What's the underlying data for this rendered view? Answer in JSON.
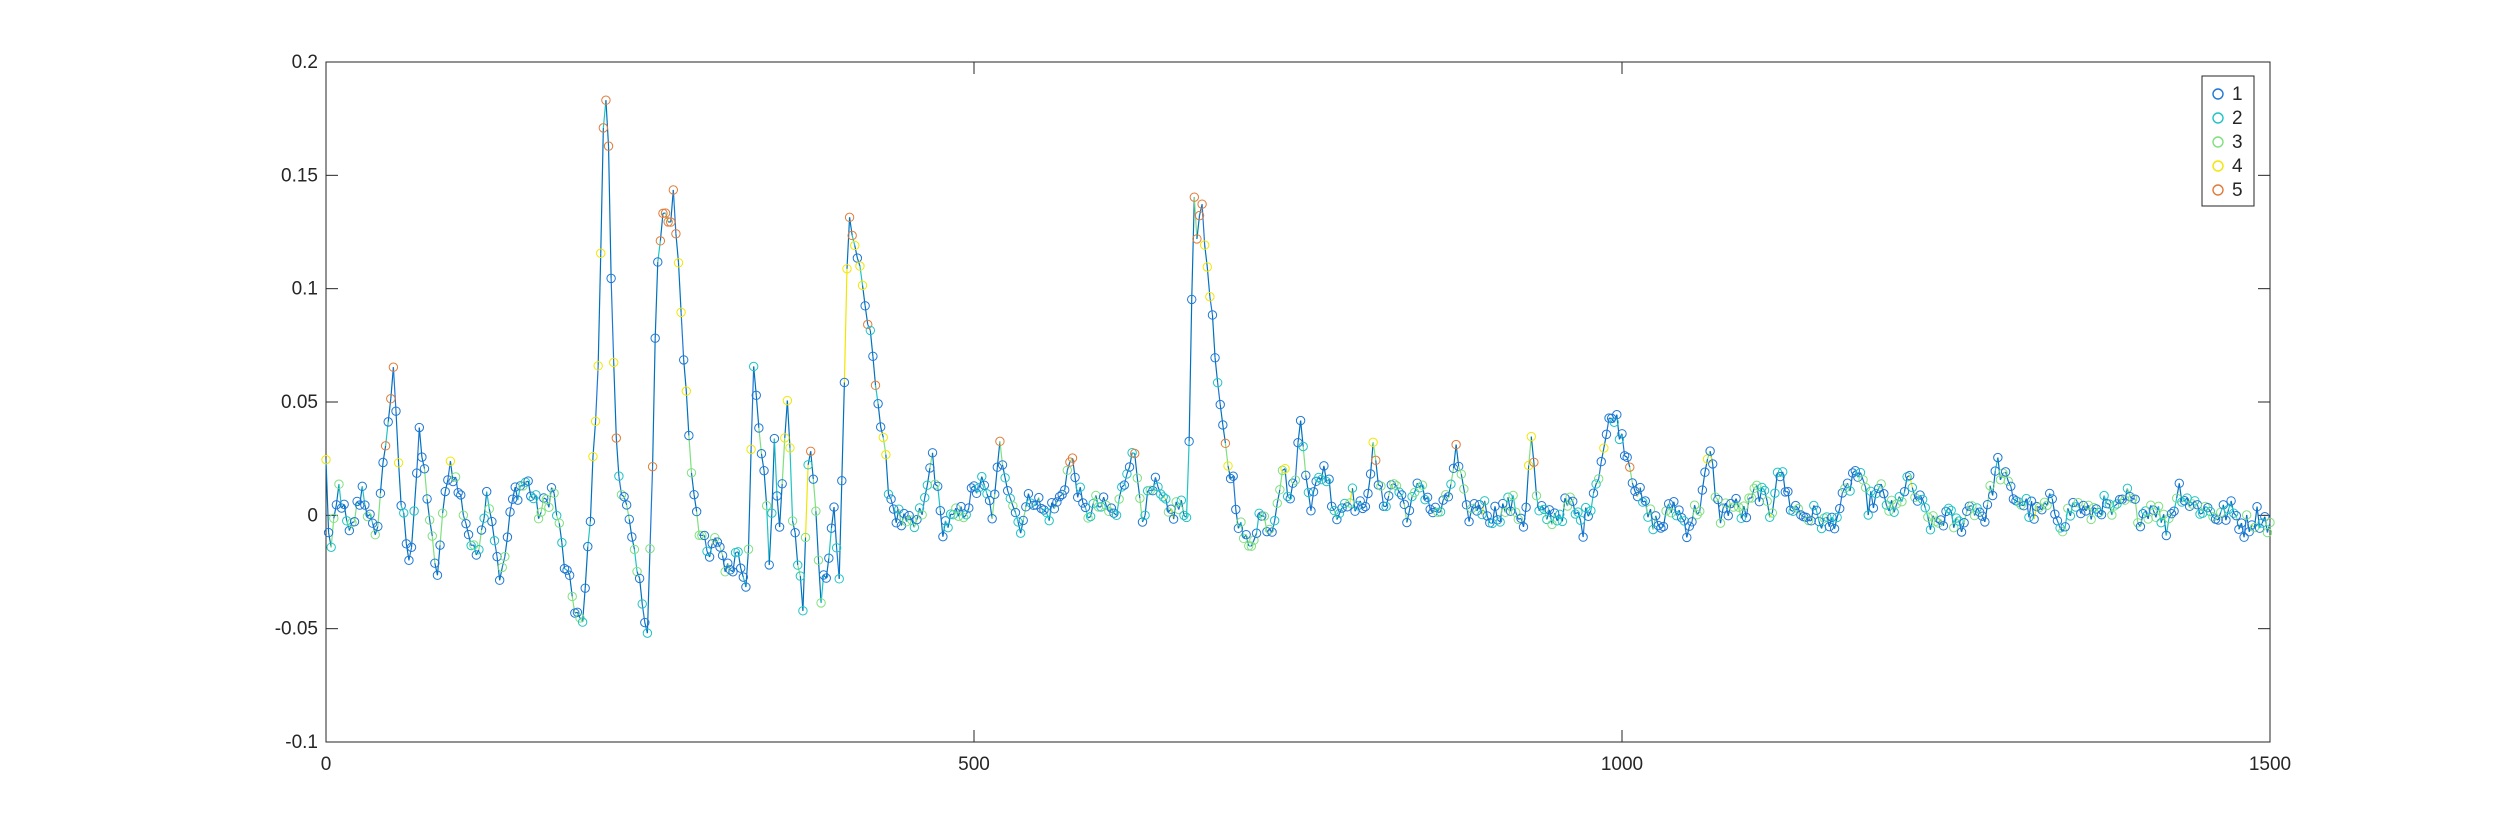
{
  "chart_data": {
    "type": "scatter",
    "title": "",
    "xlabel": "",
    "ylabel": "",
    "xlim": [
      0,
      1500
    ],
    "ylim": [
      -0.1,
      0.2
    ],
    "grid": false,
    "legend_position": "top-right",
    "x_ticks": [
      "0",
      "500",
      "1000",
      "1500"
    ],
    "y_ticks": [
      "-0.1",
      "-0.05",
      "0",
      "0.05",
      "0.1",
      "0.15",
      "0.2"
    ],
    "line_color": "#0072bd",
    "series": [
      {
        "name": "1",
        "color": "#1f77d4"
      },
      {
        "name": "2",
        "color": "#1fc4c4"
      },
      {
        "name": "3",
        "color": "#7fe07f"
      },
      {
        "name": "4",
        "color": "#f2e600"
      },
      {
        "name": "5",
        "color": "#e07b39"
      }
    ],
    "anchors": [
      [
        0,
        0.023
      ],
      [
        3,
        -0.02
      ],
      [
        10,
        0.012
      ],
      [
        18,
        -0.01
      ],
      [
        28,
        0.012
      ],
      [
        38,
        -0.012
      ],
      [
        48,
        0.043
      ],
      [
        52,
        0.062
      ],
      [
        58,
        0.005
      ],
      [
        65,
        -0.02
      ],
      [
        72,
        0.034
      ],
      [
        78,
        0.01
      ],
      [
        85,
        -0.03
      ],
      [
        95,
        0.025
      ],
      [
        105,
        0.005
      ],
      [
        115,
        -0.02
      ],
      [
        125,
        0.012
      ],
      [
        135,
        -0.03
      ],
      [
        145,
        0.01
      ],
      [
        155,
        0.015
      ],
      [
        165,
        0.0
      ],
      [
        175,
        0.012
      ],
      [
        185,
        -0.025
      ],
      [
        192,
        -0.04
      ],
      [
        198,
        -0.05
      ],
      [
        205,
        0.01
      ],
      [
        210,
        0.068
      ],
      [
        213,
        0.14
      ],
      [
        215,
        0.197
      ],
      [
        218,
        0.16
      ],
      [
        221,
        0.08
      ],
      [
        225,
        0.02
      ],
      [
        230,
        0.01
      ],
      [
        238,
        -0.02
      ],
      [
        245,
        -0.04
      ],
      [
        248,
        -0.05
      ],
      [
        252,
        0.02
      ],
      [
        255,
        0.105
      ],
      [
        260,
        0.132
      ],
      [
        265,
        0.127
      ],
      [
        268,
        0.143
      ],
      [
        272,
        0.11
      ],
      [
        276,
        0.07
      ],
      [
        282,
        0.02
      ],
      [
        288,
        -0.005
      ],
      [
        295,
        -0.02
      ],
      [
        302,
        -0.01
      ],
      [
        310,
        -0.025
      ],
      [
        318,
        -0.015
      ],
      [
        325,
        -0.03
      ],
      [
        330,
        0.064
      ],
      [
        333,
        0.045
      ],
      [
        338,
        0.02
      ],
      [
        342,
        -0.02
      ],
      [
        346,
        0.03
      ],
      [
        350,
        -0.01
      ],
      [
        353,
        0.03
      ],
      [
        356,
        0.05
      ],
      [
        360,
        0.0
      ],
      [
        364,
        -0.02
      ],
      [
        368,
        -0.04
      ],
      [
        373,
        0.035
      ],
      [
        378,
        0.0
      ],
      [
        382,
        -0.035
      ],
      [
        387,
        -0.02
      ],
      [
        392,
        0.004
      ],
      [
        396,
        -0.03
      ],
      [
        400,
        0.058
      ],
      [
        403,
        0.136
      ],
      [
        407,
        0.12
      ],
      [
        410,
        0.115
      ],
      [
        414,
        0.098
      ],
      [
        418,
        0.085
      ],
      [
        422,
        0.072
      ],
      [
        426,
        0.05
      ],
      [
        430,
        0.03
      ],
      [
        435,
        0.01
      ],
      [
        440,
        0.0
      ],
      [
        448,
        -0.005
      ],
      [
        455,
        -0.005
      ],
      [
        462,
        0.005
      ],
      [
        468,
        0.027
      ],
      [
        475,
        -0.005
      ],
      [
        490,
        0.0
      ],
      [
        505,
        0.015
      ],
      [
        515,
        0.0
      ],
      [
        520,
        0.03
      ],
      [
        528,
        0.01
      ],
      [
        535,
        -0.005
      ],
      [
        545,
        0.01
      ],
      [
        555,
        0.0
      ],
      [
        565,
        0.005
      ],
      [
        575,
        0.025
      ],
      [
        585,
        0.0
      ],
      [
        595,
        0.005
      ],
      [
        610,
        0.0
      ],
      [
        622,
        0.031
      ],
      [
        630,
        0.002
      ],
      [
        640,
        0.012
      ],
      [
        650,
        0.0
      ],
      [
        660,
        0.005
      ],
      [
        664,
        -0.005
      ],
      [
        667,
        0.052
      ],
      [
        669,
        0.146
      ],
      [
        672,
        0.125
      ],
      [
        675,
        0.14
      ],
      [
        678,
        0.12
      ],
      [
        682,
        0.1
      ],
      [
        686,
        0.07
      ],
      [
        690,
        0.045
      ],
      [
        695,
        0.025
      ],
      [
        700,
        0.015
      ],
      [
        705,
        -0.005
      ],
      [
        712,
        -0.015
      ],
      [
        720,
        0.0
      ],
      [
        730,
        -0.005
      ],
      [
        738,
        0.022
      ],
      [
        745,
        0.005
      ],
      [
        752,
        0.04
      ],
      [
        760,
        0.005
      ],
      [
        770,
        0.022
      ],
      [
        780,
        0.0
      ],
      [
        790,
        0.01
      ],
      [
        800,
        0.0
      ],
      [
        808,
        0.028
      ],
      [
        815,
        0.005
      ],
      [
        825,
        0.015
      ],
      [
        835,
        0.0
      ],
      [
        845,
        0.015
      ],
      [
        855,
        0.0
      ],
      [
        865,
        0.005
      ],
      [
        872,
        0.028
      ],
      [
        880,
        0.0
      ],
      [
        890,
        0.005
      ],
      [
        900,
        0.0
      ],
      [
        915,
        0.005
      ],
      [
        925,
        -0.003
      ],
      [
        930,
        0.035
      ],
      [
        935,
        0.0
      ],
      [
        950,
        0.0
      ],
      [
        960,
        0.005
      ],
      [
        970,
        -0.005
      ],
      [
        980,
        0.015
      ],
      [
        990,
        0.04
      ],
      [
        994,
        0.045
      ],
      [
        1000,
        0.035
      ],
      [
        1005,
        0.025
      ],
      [
        1012,
        0.01
      ],
      [
        1020,
        0.0
      ],
      [
        1030,
        -0.005
      ],
      [
        1040,
        0.005
      ],
      [
        1050,
        -0.005
      ],
      [
        1060,
        0.005
      ],
      [
        1068,
        0.027
      ],
      [
        1075,
        0.0
      ],
      [
        1085,
        0.005
      ],
      [
        1095,
        0.0
      ],
      [
        1105,
        0.012
      ],
      [
        1115,
        0.0
      ],
      [
        1120,
        0.022
      ],
      [
        1130,
        0.005
      ],
      [
        1140,
        0.0
      ],
      [
        1150,
        0.0
      ],
      [
        1160,
        -0.005
      ],
      [
        1170,
        0.005
      ],
      [
        1180,
        0.02
      ],
      [
        1190,
        0.005
      ],
      [
        1200,
        0.01
      ],
      [
        1210,
        0.0
      ],
      [
        1220,
        0.015
      ],
      [
        1230,
        0.005
      ],
      [
        1240,
        -0.005
      ],
      [
        1250,
        0.0
      ],
      [
        1260,
        -0.005
      ],
      [
        1270,
        0.005
      ],
      [
        1280,
        0.0
      ],
      [
        1290,
        0.022
      ],
      [
        1300,
        0.01
      ],
      [
        1310,
        0.005
      ],
      [
        1320,
        0.0
      ],
      [
        1330,
        0.005
      ],
      [
        1340,
        -0.003
      ],
      [
        1350,
        0.005
      ],
      [
        1360,
        0.0
      ],
      [
        1370,
        0.005
      ],
      [
        1380,
        0.0
      ],
      [
        1390,
        0.008
      ],
      [
        1400,
        0.0
      ],
      [
        1410,
        0.005
      ],
      [
        1420,
        -0.005
      ],
      [
        1430,
        0.012
      ],
      [
        1440,
        0.005
      ],
      [
        1450,
        0.003
      ],
      [
        1460,
        0.0
      ],
      [
        1470,
        0.002
      ],
      [
        1480,
        -0.005
      ],
      [
        1490,
        0.0
      ],
      [
        1500,
        -0.004
      ]
    ]
  }
}
